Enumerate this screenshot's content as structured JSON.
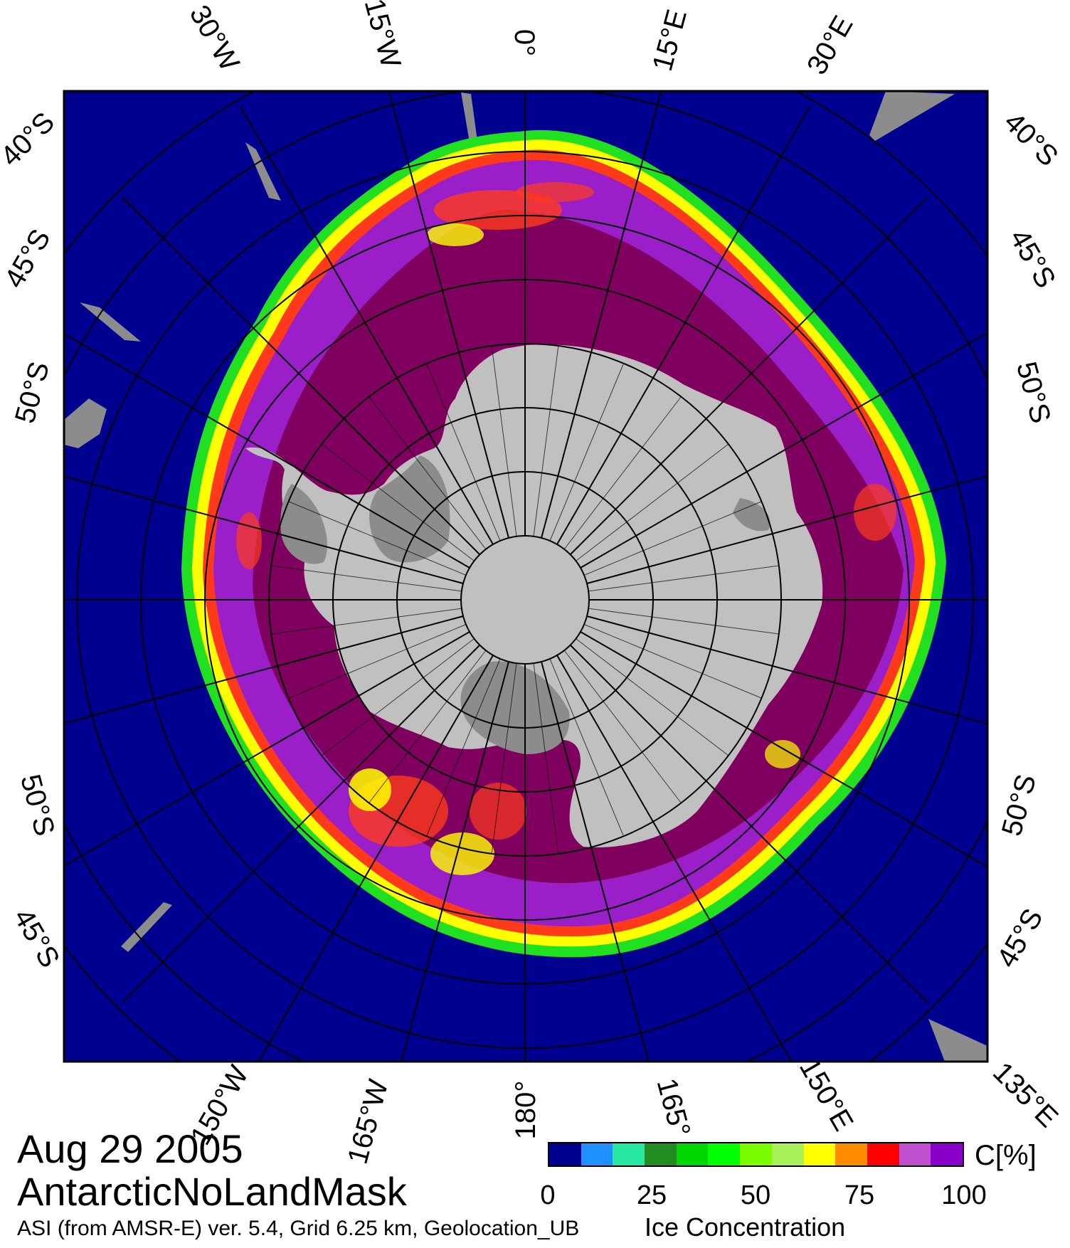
{
  "caption": {
    "date": "Aug 29 2005",
    "dataset": "AntarcticNoLandMask",
    "source": "ASI (from AMSR-E) ver. 5.4,  Grid 6.25 km, Geolocation_UB",
    "product": "Ice Concentration"
  },
  "colorbar": {
    "unit": "C[%]",
    "ticks": [
      "0",
      "25",
      "50",
      "75",
      "100"
    ],
    "colors": [
      "#00008f",
      "#1e90ff",
      "#26e8a0",
      "#228b22",
      "#00d700",
      "#00ff00",
      "#7cfc00",
      "#aaf05a",
      "#ffff00",
      "#ff8c00",
      "#ff0000",
      "#c050d0",
      "#8a00c8"
    ]
  },
  "map": {
    "projection": "polar stereographic, south pole",
    "ocean_color": "#000090",
    "land_color": "#c0c0c0",
    "ice_shelf_color": "#8c8c8c",
    "ice_colors": {
      "high": "#800060",
      "purple": "#9b1fc8",
      "mid": "#ff3a1a",
      "low": "#ffff00",
      "edge": "#20e020"
    },
    "top_longitude_labels": [
      "30°W",
      "15°W",
      "0°",
      "15°E",
      "30°E"
    ],
    "bottom_longitude_labels": [
      "150°W",
      "165°W",
      "180°",
      "165°",
      "150°E",
      "135°E"
    ],
    "left_latitude_labels": [
      "40°S",
      "45°S",
      "50°S",
      "50°S",
      "45°S"
    ],
    "right_latitude_labels": [
      "40°S",
      "45°S",
      "50°S",
      "50°S",
      "45°S"
    ]
  }
}
